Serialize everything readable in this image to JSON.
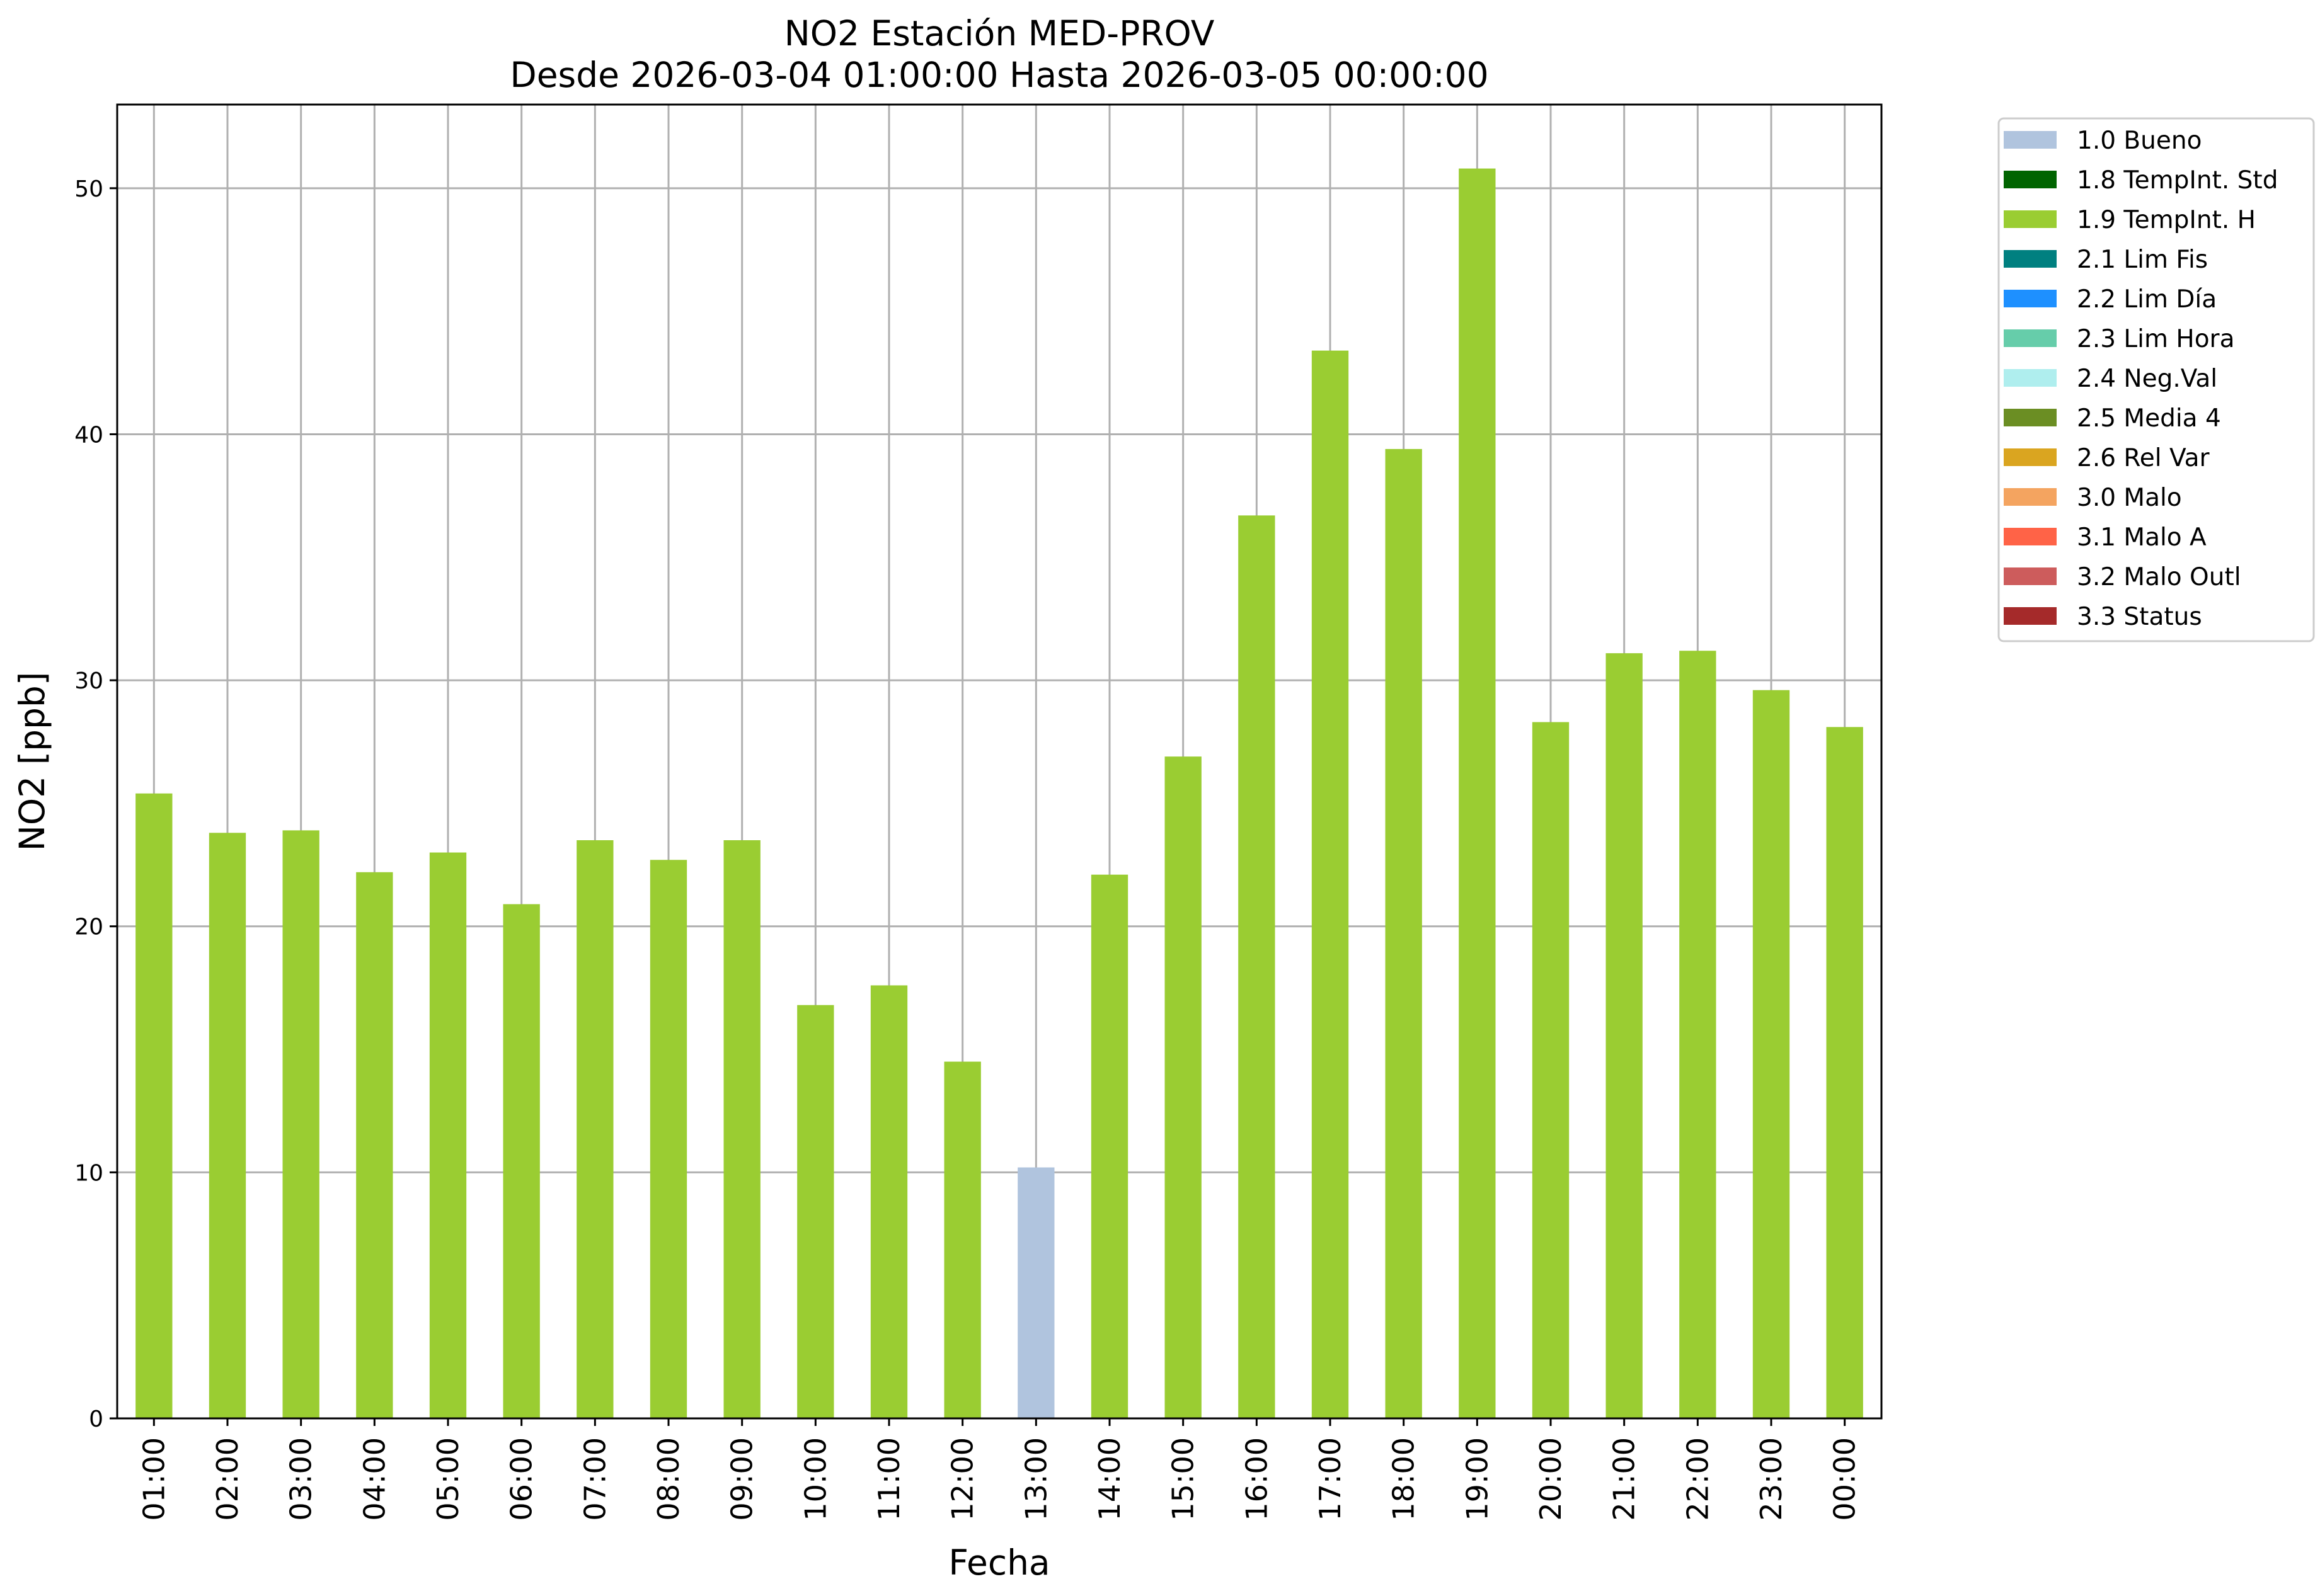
{
  "chart_data": {
    "type": "bar",
    "title": "NO2 Estación MED-PROV",
    "subtitle": "Desde 2026-03-04 01:00:00 Hasta 2026-03-05 00:00:00",
    "xlabel": "Fecha",
    "ylabel": "NO2 [ppb]",
    "ylim": [
      0,
      53.4
    ],
    "yticks": [
      0,
      10,
      20,
      30,
      40,
      50
    ],
    "grid": true,
    "legend_position": "outside-top-right",
    "categories": [
      "01:00",
      "02:00",
      "03:00",
      "04:00",
      "05:00",
      "06:00",
      "07:00",
      "08:00",
      "09:00",
      "10:00",
      "11:00",
      "12:00",
      "13:00",
      "14:00",
      "15:00",
      "16:00",
      "17:00",
      "18:00",
      "19:00",
      "20:00",
      "21:00",
      "22:00",
      "23:00",
      "00:00"
    ],
    "values": [
      25.4,
      23.8,
      23.9,
      22.2,
      23.0,
      20.9,
      23.5,
      22.7,
      23.5,
      16.8,
      17.6,
      14.5,
      10.2,
      22.1,
      26.9,
      36.7,
      43.4,
      39.4,
      50.8,
      28.3,
      31.1,
      31.2,
      29.6,
      28.1
    ],
    "flags": [
      "1.9",
      "1.9",
      "1.9",
      "1.9",
      "1.9",
      "1.9",
      "1.9",
      "1.9",
      "1.9",
      "1.9",
      "1.9",
      "1.9",
      "1.0",
      "1.9",
      "1.9",
      "1.9",
      "1.9",
      "1.9",
      "1.9",
      "1.9",
      "1.9",
      "1.9",
      "1.9",
      "1.9"
    ],
    "legend": [
      {
        "code": "1.0",
        "label": "1.0 Bueno",
        "color": "#b0c4de"
      },
      {
        "code": "1.8",
        "label": "1.8 TempInt. Std",
        "color": "#006400"
      },
      {
        "code": "1.9",
        "label": "1.9 TempInt. H",
        "color": "#9acd32"
      },
      {
        "code": "2.1",
        "label": "2.1 Lim Fis",
        "color": "#008080"
      },
      {
        "code": "2.2",
        "label": "2.2 Lim Día",
        "color": "#1e90ff"
      },
      {
        "code": "2.3",
        "label": "2.3 Lim Hora",
        "color": "#66cdaa"
      },
      {
        "code": "2.4",
        "label": "2.4 Neg.Val",
        "color": "#afeeee"
      },
      {
        "code": "2.5",
        "label": "2.5 Media 4",
        "color": "#6b8e23"
      },
      {
        "code": "2.6",
        "label": "2.6 Rel Var",
        "color": "#daa520"
      },
      {
        "code": "3.0",
        "label": "3.0 Malo",
        "color": "#f4a460"
      },
      {
        "code": "3.1",
        "label": "3.1 Malo A",
        "color": "#ff6347"
      },
      {
        "code": "3.2",
        "label": "3.2 Malo Outl",
        "color": "#cd5c5c"
      },
      {
        "code": "3.3",
        "label": "3.3 Status",
        "color": "#a52a2a"
      }
    ]
  }
}
